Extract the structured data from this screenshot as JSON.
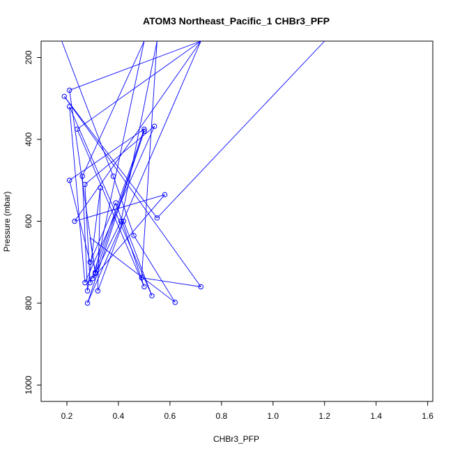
{
  "chart_data": {
    "type": "scatter",
    "title": "ATOM3 Northeast_Pacific_1 CHBr3_PFP",
    "xlabel": "CHBr3_PFP",
    "ylabel": "Pressure (mbar)",
    "xlim": [
      0.1,
      1.62
    ],
    "ylim": [
      1040,
      160
    ],
    "y_reversed": true,
    "grid": false,
    "legend": "none",
    "x_ticks": [
      0.2,
      0.4,
      0.6,
      0.8,
      1.0,
      1.2,
      1.4,
      1.6
    ],
    "x_tick_labels": [
      "0.2",
      "0.4",
      "0.6",
      "0.8",
      "1.0",
      "1.2",
      "1.4",
      "1.6"
    ],
    "y_ticks": [
      200,
      400,
      600,
      800,
      1000
    ],
    "y_tick_labels": [
      "200",
      "400",
      "600",
      "800",
      "1000"
    ],
    "series": [
      {
        "color": "#0000ff",
        "style": "points+lines",
        "points": [
          {
            "x": 0.18,
            "y": 160,
            "marker": false
          },
          {
            "x": 0.38,
            "y": 490
          },
          {
            "x": 0.46,
            "y": 635
          },
          {
            "x": 0.62,
            "y": 798
          },
          {
            "x": 0.29,
            "y": 640,
            "marker": false
          },
          {
            "x": 0.31,
            "y": 728
          },
          {
            "x": 0.5,
            "y": 380
          },
          {
            "x": 0.28,
            "y": 800
          },
          {
            "x": 0.72,
            "y": 160,
            "marker": false
          },
          {
            "x": 0.21,
            "y": 280
          },
          {
            "x": 0.31,
            "y": 725
          },
          {
            "x": 0.5,
            "y": 160,
            "marker": false
          },
          {
            "x": 0.26,
            "y": 490
          },
          {
            "x": 0.28,
            "y": 770
          },
          {
            "x": 0.33,
            "y": 518
          },
          {
            "x": 0.32,
            "y": 770
          },
          {
            "x": 0.42,
            "y": 600
          },
          {
            "x": 0.53,
            "y": 782
          },
          {
            "x": 0.21,
            "y": 320
          },
          {
            "x": 0.27,
            "y": 750
          },
          {
            "x": 0.54,
            "y": 368
          },
          {
            "x": 0.27,
            "y": 510
          },
          {
            "x": 0.29,
            "y": 750
          },
          {
            "x": 0.5,
            "y": 375
          },
          {
            "x": 0.21,
            "y": 500
          },
          {
            "x": 0.29,
            "y": 700
          },
          {
            "x": 0.39,
            "y": 555
          },
          {
            "x": 0.5,
            "y": 760
          },
          {
            "x": 0.24,
            "y": 375
          },
          {
            "x": 0.72,
            "y": 160,
            "marker": false
          },
          {
            "x": 0.23,
            "y": 600
          },
          {
            "x": 0.58,
            "y": 535
          },
          {
            "x": 0.3,
            "y": 740
          },
          {
            "x": 0.41,
            "y": 600
          },
          {
            "x": 0.55,
            "y": 160,
            "marker": false
          },
          {
            "x": 0.49,
            "y": 738
          },
          {
            "x": 0.72,
            "y": 760
          },
          {
            "x": 0.19,
            "y": 295
          },
          {
            "x": 0.55,
            "y": 592
          },
          {
            "x": 1.2,
            "y": 160,
            "marker": false
          }
        ]
      }
    ]
  }
}
